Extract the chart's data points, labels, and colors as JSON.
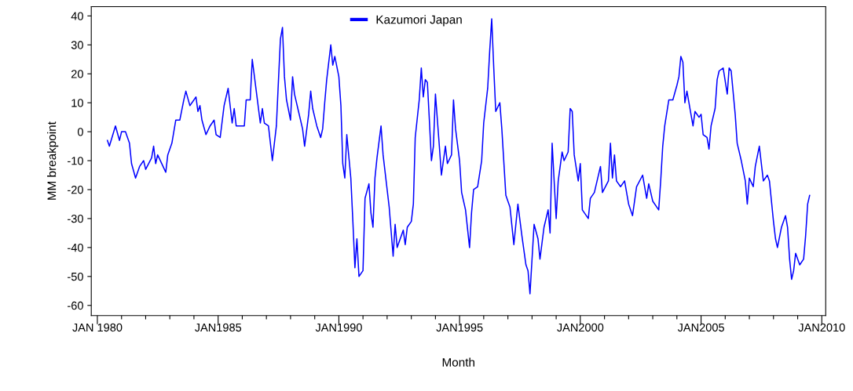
{
  "chart_data": {
    "type": "line",
    "xlabel": "Month",
    "ylabel": "MM breakpoint",
    "xlim": [
      "1979-10",
      "2010-03"
    ],
    "ylim": [
      -63.5,
      43.2
    ],
    "xticks": [
      {
        "value": "1980-01",
        "label": "JAN 1980"
      },
      {
        "value": "1981-01",
        "label": null
      },
      {
        "value": "1982-01",
        "label": null
      },
      {
        "value": "1983-01",
        "label": null
      },
      {
        "value": "1984-01",
        "label": null
      },
      {
        "value": "1985-01",
        "label": "JAN1985"
      },
      {
        "value": "1986-01",
        "label": null
      },
      {
        "value": "1987-01",
        "label": null
      },
      {
        "value": "1988-01",
        "label": null
      },
      {
        "value": "1989-01",
        "label": null
      },
      {
        "value": "1990-01",
        "label": "JAN1990"
      },
      {
        "value": "1991-01",
        "label": null
      },
      {
        "value": "1992-01",
        "label": null
      },
      {
        "value": "1993-01",
        "label": null
      },
      {
        "value": "1994-01",
        "label": null
      },
      {
        "value": "1995-01",
        "label": "JAN1995"
      },
      {
        "value": "1996-01",
        "label": null
      },
      {
        "value": "1997-01",
        "label": null
      },
      {
        "value": "1998-01",
        "label": null
      },
      {
        "value": "1999-01",
        "label": null
      },
      {
        "value": "2000-01",
        "label": "JAN2000"
      },
      {
        "value": "2001-01",
        "label": null
      },
      {
        "value": "2002-01",
        "label": null
      },
      {
        "value": "2003-01",
        "label": null
      },
      {
        "value": "2004-01",
        "label": null
      },
      {
        "value": "2005-01",
        "label": "JAN2005"
      },
      {
        "value": "2006-01",
        "label": null
      },
      {
        "value": "2007-01",
        "label": null
      },
      {
        "value": "2008-01",
        "label": null
      },
      {
        "value": "2009-01",
        "label": null
      },
      {
        "value": "2010-01",
        "label": "JAN2010"
      }
    ],
    "yticks": [
      -60,
      -50,
      -40,
      -30,
      -20,
      -10,
      0,
      10,
      20,
      30,
      40
    ],
    "grid": false,
    "legend": "top",
    "marker": "none",
    "line_style": "solid",
    "series": [
      {
        "name": "Kazumori Japan",
        "color": "#0000ff",
        "x": [
          "1980-06",
          "1980-07",
          "1980-10",
          "1980-12",
          "1981-01",
          "1981-03",
          "1981-05",
          "1981-06",
          "1981-08",
          "1981-10",
          "1981-12",
          "1982-01",
          "1982-04",
          "1982-05",
          "1982-06",
          "1982-07",
          "1982-11",
          "1982-12",
          "1983-02",
          "1983-04",
          "1983-06",
          "1983-08",
          "1983-09",
          "1983-11",
          "1984-02",
          "1984-03",
          "1984-04",
          "1984-05",
          "1984-07",
          "1984-09",
          "1984-11",
          "1984-12",
          "1985-02",
          "1985-04",
          "1985-06",
          "1985-08",
          "1985-09",
          "1985-10",
          "1986-02",
          "1986-03",
          "1986-05",
          "1986-06",
          "1986-08",
          "1986-10",
          "1986-11",
          "1986-12",
          "1987-02",
          "1987-04",
          "1987-06",
          "1987-07",
          "1987-08",
          "1987-09",
          "1987-10",
          "1987-11",
          "1988-01",
          "1988-02",
          "1988-03",
          "1988-05",
          "1988-07",
          "1988-08",
          "1988-10",
          "1988-11",
          "1988-12",
          "1989-02",
          "1989-04",
          "1989-05",
          "1989-06",
          "1989-07",
          "1989-09",
          "1989-10",
          "1989-11",
          "1990-01",
          "1990-02",
          "1990-03",
          "1990-04",
          "1990-05",
          "1990-07",
          "1990-08",
          "1990-09",
          "1990-10",
          "1990-11",
          "1991-01",
          "1991-02",
          "1991-04",
          "1991-05",
          "1991-06",
          "1991-07",
          "1991-08",
          "1991-10",
          "1991-11",
          "1992-02",
          "1992-04",
          "1992-05",
          "1992-06",
          "1992-09",
          "1992-10",
          "1992-11",
          "1993-01",
          "1993-02",
          "1993-03",
          "1993-05",
          "1993-06",
          "1993-07",
          "1993-08",
          "1993-09",
          "1993-10",
          "1993-11",
          "1993-12",
          "1994-01",
          "1994-03",
          "1994-04",
          "1994-06",
          "1994-07",
          "1994-09",
          "1994-10",
          "1994-11",
          "1995-01",
          "1995-02",
          "1995-04",
          "1995-06",
          "1995-07",
          "1995-08",
          "1995-10",
          "1995-12",
          "1996-01",
          "1996-03",
          "1996-04",
          "1996-05",
          "1996-06",
          "1996-07",
          "1996-09",
          "1996-10",
          "1996-12",
          "1997-02",
          "1997-04",
          "1997-06",
          "1997-08",
          "1997-10",
          "1997-11",
          "1997-12",
          "1998-02",
          "1998-04",
          "1998-05",
          "1998-07",
          "1998-09",
          "1998-10",
          "1998-11",
          "1999-01",
          "1999-02",
          "1999-04",
          "1999-05",
          "1999-07",
          "1999-08",
          "1999-09",
          "1999-10",
          "1999-12",
          "2000-01",
          "2000-02",
          "2000-05",
          "2000-06",
          "2000-08",
          "2000-11",
          "2000-12",
          "2001-03",
          "2001-04",
          "2001-05",
          "2001-06",
          "2001-07",
          "2001-09",
          "2001-11",
          "2002-01",
          "2002-03",
          "2002-05",
          "2002-08",
          "2002-10",
          "2002-11",
          "2003-01",
          "2003-04",
          "2003-05",
          "2003-06",
          "2003-07",
          "2003-09",
          "2003-11",
          "2004-01",
          "2004-02",
          "2004-03",
          "2004-04",
          "2004-05",
          "2004-06",
          "2004-08",
          "2004-09",
          "2004-10",
          "2004-12",
          "2005-01",
          "2005-02",
          "2005-04",
          "2005-05",
          "2005-06",
          "2005-08",
          "2005-09",
          "2005-10",
          "2005-12",
          "2006-02",
          "2006-03",
          "2006-04",
          "2006-06",
          "2006-07",
          "2006-09",
          "2006-11",
          "2006-12",
          "2007-01",
          "2007-03",
          "2007-04",
          "2007-06",
          "2007-08",
          "2007-10",
          "2007-11",
          "2008-01",
          "2008-02",
          "2008-03",
          "2008-05",
          "2008-07",
          "2008-08",
          "2008-09",
          "2008-10",
          "2008-11",
          "2008-12",
          "2009-02",
          "2009-04",
          "2009-05",
          "2009-06",
          "2009-07"
        ],
        "values": [
          -3,
          -5,
          2,
          -3,
          0,
          0,
          -4,
          -11,
          -16,
          -12,
          -10,
          -13,
          -9,
          -5,
          -11,
          -8,
          -14,
          -8,
          -4,
          4,
          4,
          11,
          14,
          9,
          12,
          7,
          9,
          4,
          -1,
          2,
          4,
          -1,
          -2,
          9,
          15,
          3,
          8,
          2,
          2,
          11,
          11,
          25,
          14,
          3,
          8,
          3,
          2,
          -10,
          2,
          17,
          32,
          36,
          19,
          11,
          4,
          19,
          13,
          7,
          1,
          -5,
          6,
          14,
          8,
          2,
          -2,
          1,
          10,
          18,
          30,
          23,
          26,
          19,
          9,
          -11,
          -16,
          -1,
          -16,
          -31,
          -47,
          -37,
          -50,
          -48,
          -23,
          -18,
          -28,
          -33,
          -16,
          -9,
          2,
          -8,
          -26,
          -43,
          -32,
          -40,
          -34,
          -39,
          -33,
          -31,
          -25,
          -2,
          11,
          22,
          12,
          18,
          17,
          4,
          -10,
          -5,
          13,
          -5,
          -15,
          -5,
          -11,
          -8,
          11,
          1,
          -10,
          -21,
          -27,
          -40,
          -28,
          -20,
          -19,
          -10,
          3,
          15,
          28,
          39,
          22,
          7,
          10,
          1,
          -22,
          -26,
          -39,
          -25,
          -36,
          -46,
          -48,
          -56,
          -32,
          -37,
          -44,
          -33,
          -27,
          -35,
          -4,
          -30,
          -17,
          -7,
          -10,
          -7,
          8,
          7,
          -8,
          -17,
          -11,
          -27,
          -30,
          -23,
          -21,
          -12,
          -21,
          -17,
          -4,
          -16,
          -8,
          -17,
          -19,
          -17,
          -25,
          -29,
          -19,
          -15,
          -23,
          -18,
          -24,
          -27,
          -17,
          -5,
          2,
          11,
          11,
          16,
          19,
          26,
          24,
          10,
          14,
          6,
          2,
          7,
          5,
          6,
          -1,
          -2,
          -6,
          2,
          8,
          18,
          21,
          22,
          13,
          22,
          21,
          6,
          -4,
          -10,
          -17,
          -25,
          -16,
          -19,
          -12,
          -5,
          -17,
          -15,
          -17,
          -31,
          -37,
          -40,
          -33,
          -29,
          -33,
          -44,
          -51,
          -48,
          -42,
          -46,
          -44,
          -36,
          -25,
          -22
        ]
      }
    ]
  }
}
